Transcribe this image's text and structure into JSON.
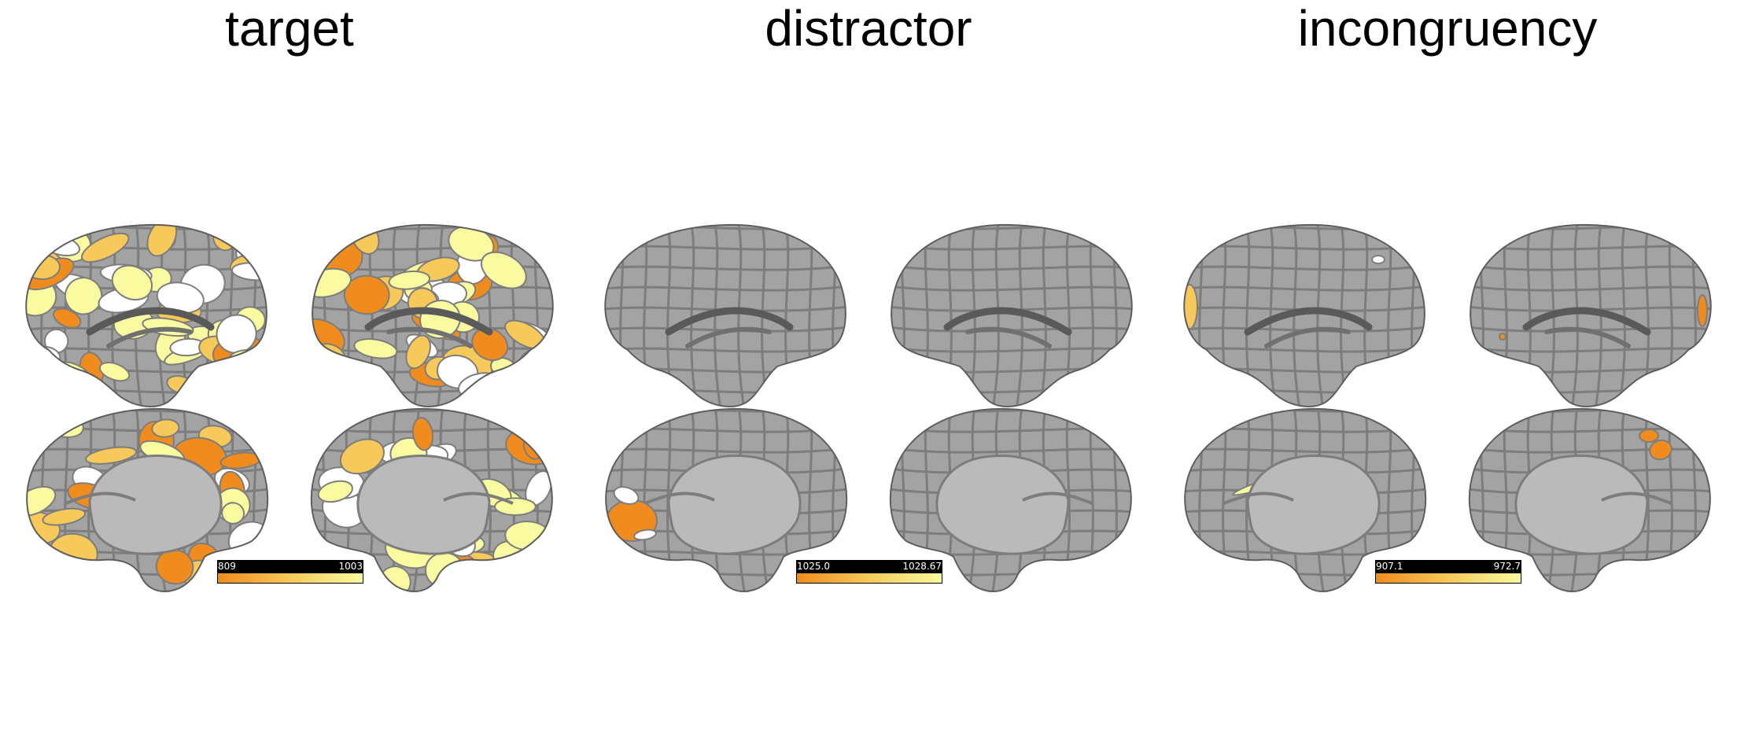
{
  "colors": {
    "surface": "#a3a3a3",
    "medial_wall": "#bababa",
    "border": "#7d7d7d",
    "outline": "#5e5e5e",
    "scale_low": "#f08c1e",
    "scale_mid": "#f6c95a",
    "scale_high": "#fafaa0",
    "saturated": "#ffffff"
  },
  "panels": [
    {
      "title": "target",
      "colorbar": {
        "min": "809",
        "max": "1003"
      }
    },
    {
      "title": "distractor",
      "colorbar": {
        "min": "1025.0",
        "max": "1028.67"
      }
    },
    {
      "title": "incongruency",
      "colorbar": {
        "min": "907.1",
        "max": "972.7"
      }
    }
  ]
}
